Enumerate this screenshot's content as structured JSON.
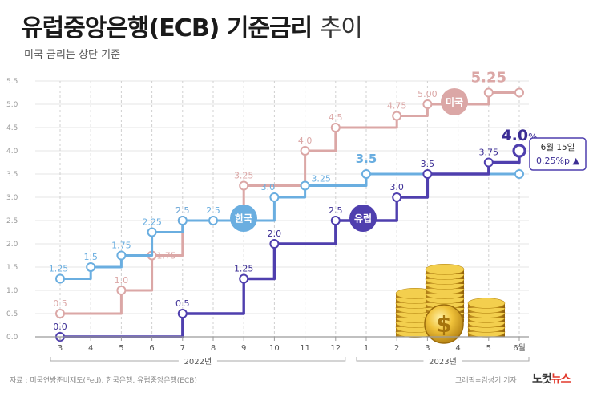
{
  "title_main": "유럽중앙은행(ECB) 기준금리",
  "title_tail": "추이",
  "subtitle": "미국 금리는 상단 기준",
  "source": "자료 : 미국연방준비제도(Fed), 한국은행, 유럽중앙은행(ECB)",
  "credit": "그래픽=김성기 기자",
  "logo_main": "노컷",
  "logo_accent": "뉴스",
  "colors": {
    "us": "#dba7a6",
    "kr": "#6aaee0",
    "eu": "#4f3fae",
    "grid": "#e6e6e6",
    "axis": "#9a9a9a"
  },
  "chart_data": {
    "type": "line",
    "step": true,
    "x_ticks": [
      "3",
      "4",
      "5",
      "6",
      "7",
      "8",
      "9",
      "10",
      "11",
      "12",
      "1",
      "2",
      "3",
      "4",
      "5",
      "6월"
    ],
    "year_labels": [
      "2022년",
      "2023년"
    ],
    "ylim": [
      0,
      5.5
    ],
    "y_ticks": [
      "0.0",
      "0.5",
      "1.0",
      "1.5",
      "2.0",
      "2.5",
      "3.0",
      "3.5",
      "4.0",
      "4.5",
      "5.0",
      "5.5"
    ],
    "grid": true,
    "series": [
      {
        "name": "미국",
        "key": "us",
        "points": [
          [
            0,
            0.5
          ],
          [
            2,
            1.0
          ],
          [
            3,
            1.75
          ],
          [
            4,
            2.5
          ],
          [
            6,
            3.25
          ],
          [
            8,
            4.0
          ],
          [
            9,
            4.5
          ],
          [
            11,
            4.75
          ],
          [
            12,
            5.0
          ],
          [
            14,
            5.25
          ],
          [
            15,
            5.25
          ]
        ],
        "labels": [
          "0.5",
          "1.0",
          "1.75",
          "2.5",
          "3.25",
          "4.0",
          "4.5",
          "4.75",
          "5.00",
          "5.25"
        ]
      },
      {
        "name": "한국",
        "key": "kr",
        "points": [
          [
            0,
            1.25
          ],
          [
            1,
            1.5
          ],
          [
            2,
            1.75
          ],
          [
            3,
            2.25
          ],
          [
            4,
            2.5
          ],
          [
            5,
            2.5
          ],
          [
            7,
            3.0
          ],
          [
            8,
            3.25
          ],
          [
            10,
            3.5
          ],
          [
            15,
            3.5
          ]
        ],
        "labels": [
          "1.25",
          "1.5",
          "1.75",
          "2.25",
          "2.5",
          "2.5",
          "3.0",
          "3.25",
          "3.5"
        ]
      },
      {
        "name": "유럽",
        "key": "eu",
        "points": [
          [
            0,
            0.0
          ],
          [
            4,
            0.5
          ],
          [
            6,
            1.25
          ],
          [
            7,
            2.0
          ],
          [
            9,
            2.5
          ],
          [
            11,
            3.0
          ],
          [
            12,
            3.5
          ],
          [
            14,
            3.75
          ],
          [
            15,
            4.0
          ]
        ],
        "labels": [
          "0.0",
          "0.5",
          "1.25",
          "2.0",
          "2.5",
          "3.0",
          "3.5",
          "3.75",
          "4.0"
        ]
      }
    ],
    "annotations": {
      "eu_last_suffix": "%",
      "callout_date": "6월 15일",
      "callout_change": "0.25%p ▲"
    }
  }
}
